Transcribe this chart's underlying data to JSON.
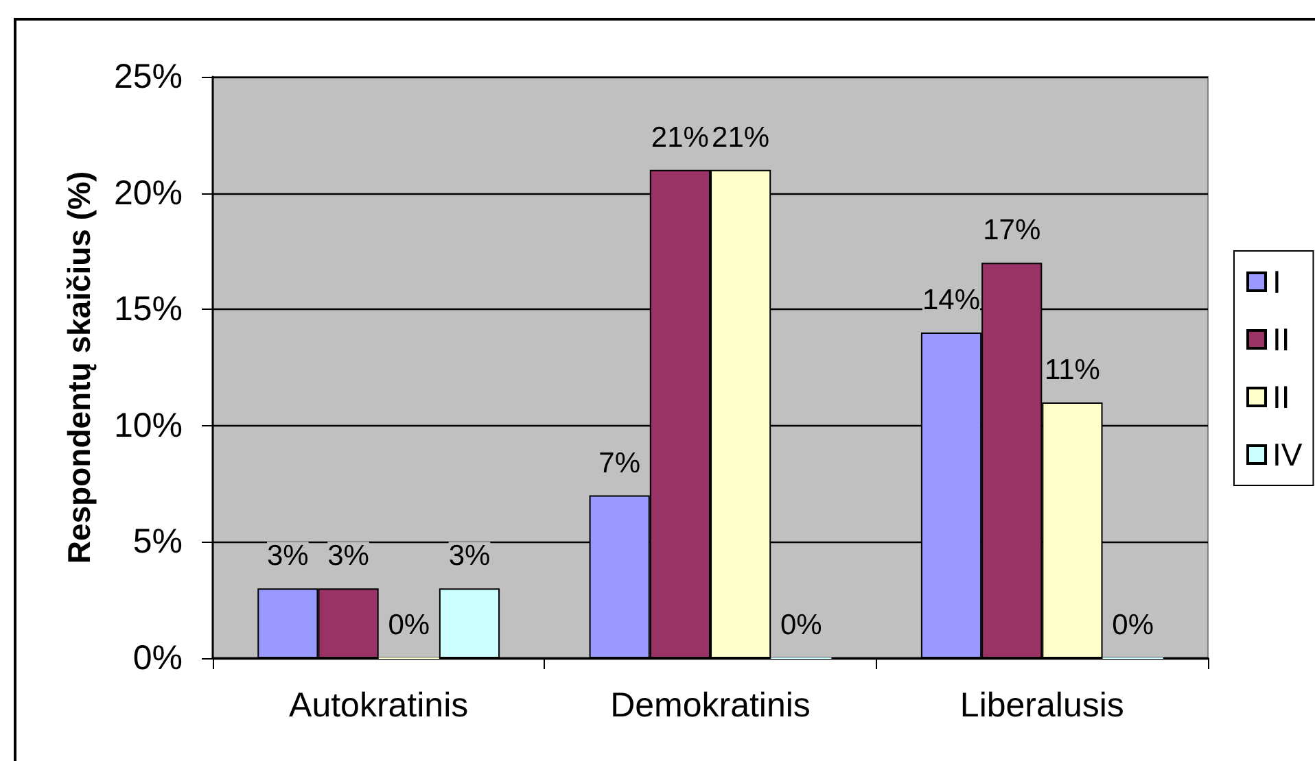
{
  "chart_data": {
    "type": "bar",
    "ylabel": "Respondentų skaičius (%)",
    "categories": [
      "Autokratinis",
      "Demokratinis",
      "Liberalusis"
    ],
    "series": [
      {
        "name": "I",
        "color": "#9999ff",
        "values": [
          3,
          7,
          14
        ],
        "value_labels": [
          "3%",
          "7%",
          "14%"
        ]
      },
      {
        "name": "II",
        "color": "#993366",
        "values": [
          3,
          21,
          17
        ],
        "value_labels": [
          "3%",
          "21%",
          "17%"
        ]
      },
      {
        "name": "II",
        "color": "#ffffcc",
        "values": [
          0,
          21,
          11
        ],
        "value_labels": [
          "0%",
          "21%",
          "11%"
        ]
      },
      {
        "name": "IV",
        "color": "#ccffff",
        "values": [
          3,
          0,
          0
        ],
        "value_labels": [
          "3%",
          "0%",
          "0%"
        ]
      }
    ],
    "ylim": [
      0,
      25
    ],
    "yticks": [
      {
        "value": 0,
        "label": "0%"
      },
      {
        "value": 5,
        "label": "5%"
      },
      {
        "value": 10,
        "label": "10%"
      },
      {
        "value": 15,
        "label": "15%"
      },
      {
        "value": 20,
        "label": "20%"
      },
      {
        "value": 25,
        "label": "25%"
      }
    ],
    "grid": "y",
    "legend": "right"
  }
}
